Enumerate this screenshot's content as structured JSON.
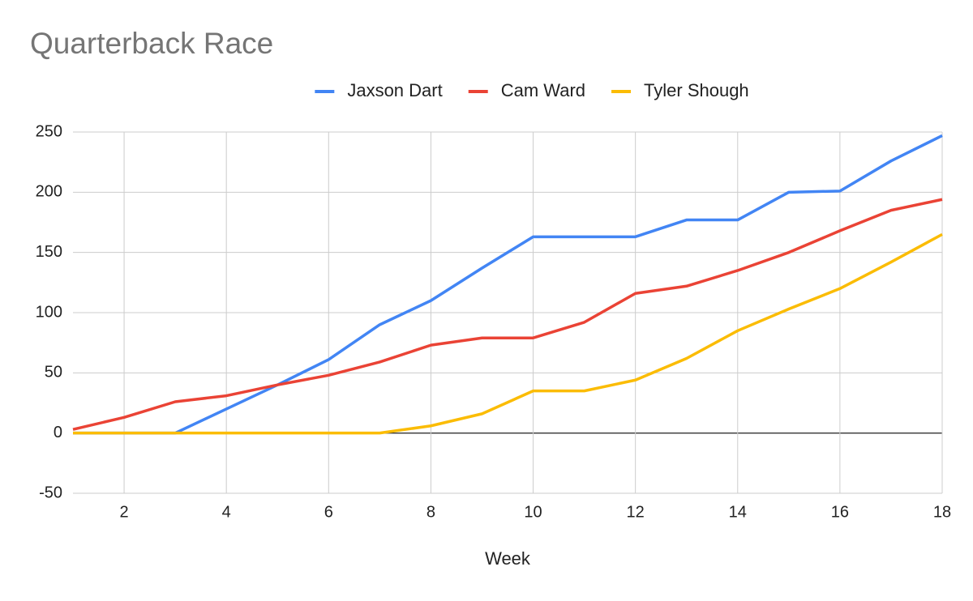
{
  "chart_data": {
    "type": "line",
    "title": "Quarterback Race",
    "x_label": "Week",
    "x": [
      1,
      2,
      3,
      4,
      5,
      6,
      7,
      8,
      9,
      10,
      11,
      12,
      13,
      14,
      15,
      16,
      17,
      18
    ],
    "series": [
      {
        "name": "Jaxson Dart",
        "color": "#4285f4",
        "values": [
          0,
          0,
          0,
          20,
          40,
          61,
          90,
          110,
          137,
          163,
          163,
          163,
          177,
          177,
          200,
          201,
          226,
          247
        ]
      },
      {
        "name": "Cam Ward",
        "color": "#ea4335",
        "values": [
          3,
          13,
          26,
          31,
          40,
          48,
          59,
          73,
          79,
          79,
          92,
          116,
          122,
          135,
          150,
          168,
          185,
          194
        ]
      },
      {
        "name": "Tyler Shough",
        "color": "#fbbc04",
        "values": [
          0,
          0,
          0,
          0,
          0,
          0,
          0,
          6,
          16,
          35,
          35,
          44,
          62,
          85,
          103,
          120,
          142,
          165
        ]
      }
    ],
    "xlim": [
      1,
      18
    ],
    "xticks": [
      2,
      4,
      6,
      8,
      10,
      12,
      14,
      16,
      18
    ],
    "ylim": [
      -50,
      250
    ],
    "yticks": [
      -50,
      0,
      50,
      100,
      150,
      200,
      250
    ],
    "grid": true,
    "legend": "top"
  }
}
